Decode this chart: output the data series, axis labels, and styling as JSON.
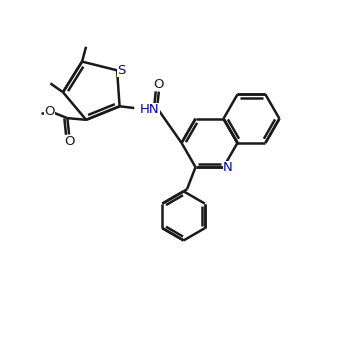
{
  "bg_color": "#ffffff",
  "line_color": "#1a1a1a",
  "heteroatom_color": "#0000cd",
  "bond_width": 1.8,
  "figsize": [
    3.44,
    3.54
  ],
  "dpi": 100,
  "xlim": [
    0.0,
    10.0
  ],
  "ylim": [
    0.0,
    10.3
  ]
}
